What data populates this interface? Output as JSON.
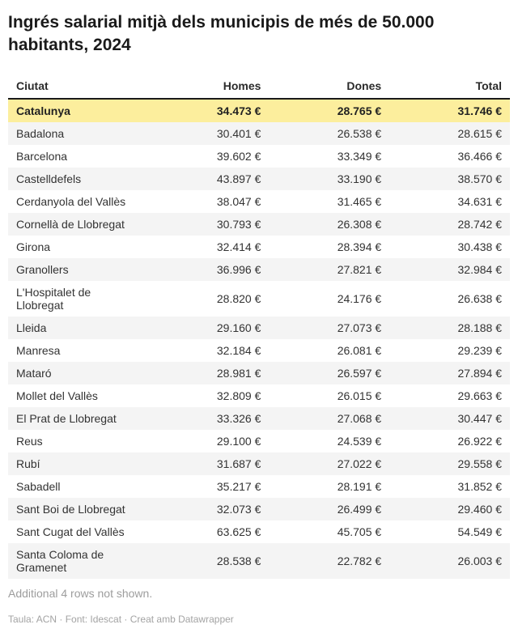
{
  "chart_data": {
    "type": "table",
    "title": "Ingrés salarial mitjà dels municipis de més de 50.000 habitants, 2024",
    "columns": [
      "Ciutat",
      "Homes",
      "Dones",
      "Total"
    ],
    "unit": "€",
    "number_format": "thousands-dot",
    "highlight_row": "Catalunya",
    "rows": [
      {
        "ciutat": "Catalunya",
        "homes": 34473,
        "dones": 28765,
        "total": 31746
      },
      {
        "ciutat": "Badalona",
        "homes": 30401,
        "dones": 26538,
        "total": 28615
      },
      {
        "ciutat": "Barcelona",
        "homes": 39602,
        "dones": 33349,
        "total": 36466
      },
      {
        "ciutat": "Castelldefels",
        "homes": 43897,
        "dones": 33190,
        "total": 38570
      },
      {
        "ciutat": "Cerdanyola del Vallès",
        "homes": 38047,
        "dones": 31465,
        "total": 34631
      },
      {
        "ciutat": "Cornellà de Llobregat",
        "homes": 30793,
        "dones": 26308,
        "total": 28742
      },
      {
        "ciutat": "Girona",
        "homes": 32414,
        "dones": 28394,
        "total": 30438
      },
      {
        "ciutat": "Granollers",
        "homes": 36996,
        "dones": 27821,
        "total": 32984
      },
      {
        "ciutat": "L'Hospitalet de Llobregat",
        "homes": 28820,
        "dones": 24176,
        "total": 26638
      },
      {
        "ciutat": "Lleida",
        "homes": 29160,
        "dones": 27073,
        "total": 28188
      },
      {
        "ciutat": "Manresa",
        "homes": 32184,
        "dones": 26081,
        "total": 29239
      },
      {
        "ciutat": "Mataró",
        "homes": 28981,
        "dones": 26597,
        "total": 27894
      },
      {
        "ciutat": "Mollet del Vallès",
        "homes": 32809,
        "dones": 26015,
        "total": 29663
      },
      {
        "ciutat": "El Prat de Llobregat",
        "homes": 33326,
        "dones": 27068,
        "total": 30447
      },
      {
        "ciutat": "Reus",
        "homes": 29100,
        "dones": 24539,
        "total": 26922
      },
      {
        "ciutat": "Rubí",
        "homes": 31687,
        "dones": 27022,
        "total": 29558
      },
      {
        "ciutat": "Sabadell",
        "homes": 35217,
        "dones": 28191,
        "total": 31852
      },
      {
        "ciutat": "Sant Boi de Llobregat",
        "homes": 32073,
        "dones": 26499,
        "total": 29460
      },
      {
        "ciutat": "Sant Cugat del Vallès",
        "homes": 63625,
        "dones": 45705,
        "total": 54549
      },
      {
        "ciutat": "Santa Coloma de Gramenet",
        "homes": 28538,
        "dones": 22782,
        "total": 26003
      }
    ]
  },
  "footer": {
    "note": "Additional 4 rows not shown.",
    "credit": "Taula: ACN · Font: Idescat · Creat amb Datawrapper"
  },
  "colors": {
    "highlight_bg": "#fcee9d",
    "stripe_bg": "#f4f4f4",
    "header_rule": "#1a1a1a",
    "title_color": "#1a1a1a",
    "text_color": "#333333",
    "muted_color": "#9d9d9d",
    "credit_color": "#a3a3a3"
  }
}
